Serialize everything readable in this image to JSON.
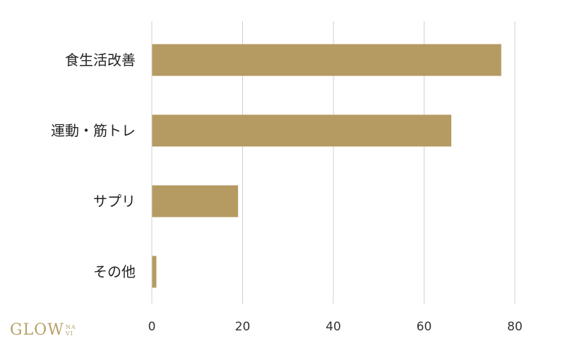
{
  "chart_data": {
    "type": "bar",
    "orientation": "horizontal",
    "categories": [
      "食生活改善",
      "運動・筋トレ",
      "サプリ",
      "その他"
    ],
    "values": [
      77,
      66,
      19,
      1
    ],
    "xlim": [
      0,
      80
    ],
    "xticks": [
      "0",
      "20",
      "40",
      "60",
      "80"
    ],
    "grid": true,
    "bar_color": "#b59b62"
  },
  "logo": {
    "main": "GLOW",
    "sub_top": "NA",
    "sub_bottom": "VI",
    "color": "#b8a06a"
  }
}
